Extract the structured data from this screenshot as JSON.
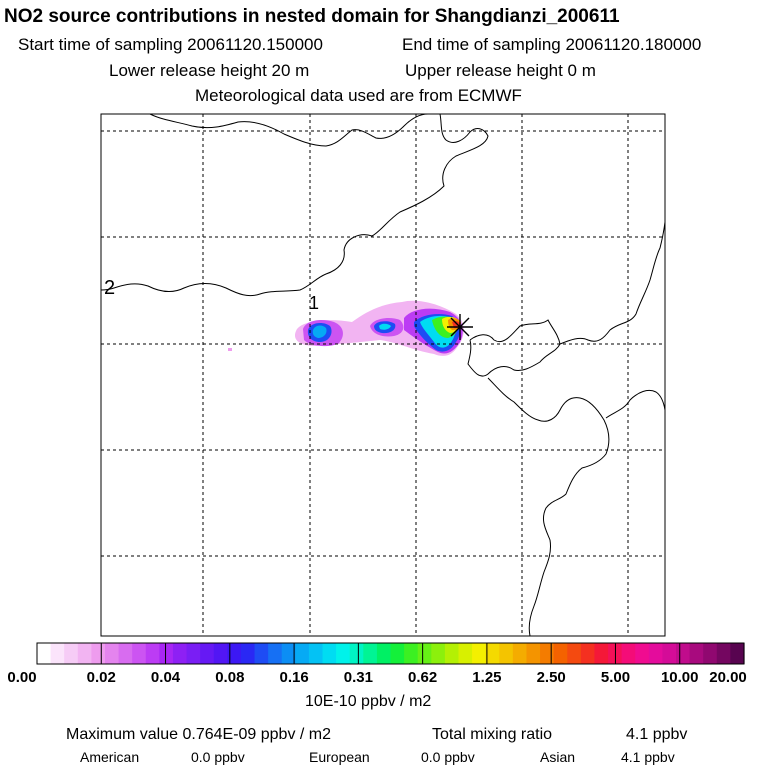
{
  "header": {
    "title": "NO2 source contributions in nested domain for Shangdianzi_200611",
    "start_sampling": "Start time of sampling 20061120.150000",
    "end_sampling": "End time of sampling 20061120.180000",
    "lower_release": "Lower release height   20 m",
    "upper_release": "Upper release height    0 m",
    "met_data": "Meteorological data used are from ECMWF"
  },
  "map": {
    "contour_labels": [
      "2",
      "1"
    ],
    "receptor_marker": "star"
  },
  "chart_data": {
    "type": "heatmap",
    "title": "NO2 source contributions in nested domain for Shangdianzi_200611",
    "colorbar": {
      "unit": "10E-10 ppbv / m2",
      "tick_labels": [
        "0.00",
        "0.02",
        "0.04",
        "0.08",
        "0.16",
        "0.31",
        "0.62",
        "1.25",
        "2.50",
        "5.00",
        "10.00",
        "20.00"
      ],
      "colors": [
        "#ffffff",
        "#fbe4fb",
        "#f6ccf6",
        "#f2b4f2",
        "#ee9cee",
        "#e484ee",
        "#d86cf0",
        "#cc54f2",
        "#bc3cf4",
        "#a826f4",
        "#8e20f4",
        "#7a1ef4",
        "#6619f4",
        "#5216f4",
        "#3c18f4",
        "#2a28f4",
        "#1e4cf4",
        "#1670f4",
        "#0c8ef4",
        "#06aaf4",
        "#04c2f4",
        "#00dcf2",
        "#00f2ea",
        "#00f4c4",
        "#00f494",
        "#00f064",
        "#14f03a",
        "#3cf022",
        "#66f016",
        "#8cf00c",
        "#b4f004",
        "#d8f000",
        "#f4f000",
        "#f4da00",
        "#f4c400",
        "#f4ac00",
        "#f49400",
        "#f47c00",
        "#f46200",
        "#f44a10",
        "#f43020",
        "#f41838",
        "#f41058",
        "#f40c78",
        "#f00c90",
        "#e40c9c",
        "#d40c98",
        "#c00c8c",
        "#a80a7e",
        "#900870",
        "#740660",
        "#580450"
      ]
    },
    "max_value": "Maximum value  0.764E-09 ppbv / m2",
    "total_mixing_ratio_label": "Total mixing ratio",
    "total_mixing_ratio_value": "4.1 ppbv",
    "regional_contributions": [
      {
        "region": "American",
        "value": "0.0 ppbv"
      },
      {
        "region": "European",
        "value": "0.0 ppbv"
      },
      {
        "region": "Asian",
        "value": "4.1 ppbv"
      }
    ]
  }
}
